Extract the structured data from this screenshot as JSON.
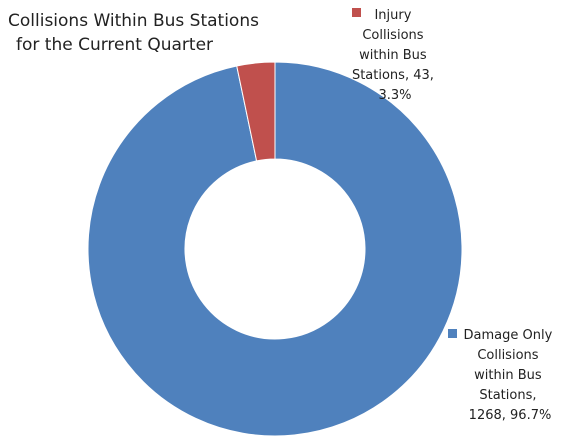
{
  "chart_data": {
    "type": "pie",
    "donut": true,
    "title": [
      "Collisions Within Bus Stations",
      "for the  Current Quarter"
    ],
    "slices": [
      {
        "category": "Damage Only Collisions within Bus Stations",
        "value": 1268,
        "percent": "96.7%",
        "color": "#4F81BD",
        "label_lines": [
          "Damage Only",
          "Collisions",
          "within Bus",
          "Stations,",
          "1268, 96.7%"
        ]
      },
      {
        "category": "Injury Collisions within Bus Stations",
        "value": 43,
        "percent": "3.3%",
        "color": "#C0504D",
        "label_lines": [
          "Injury",
          "Collisions",
          "within Bus",
          "Stations, 43,",
          "3.3%"
        ]
      }
    ],
    "legend": "inline-labels"
  }
}
